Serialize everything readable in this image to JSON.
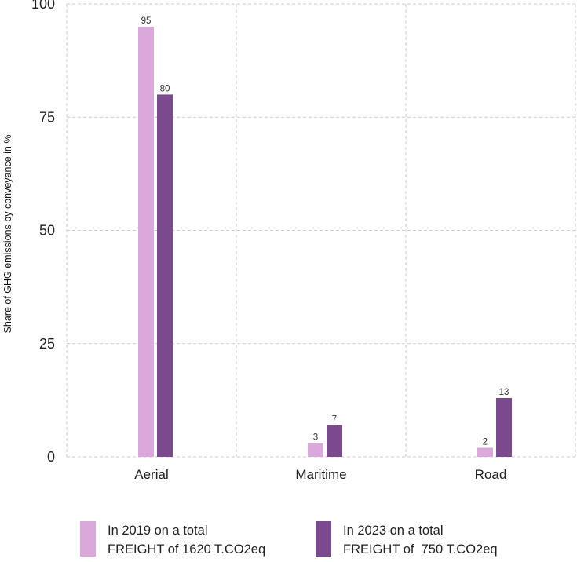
{
  "chart_data": {
    "type": "bar",
    "categories": [
      "Aerial",
      "Maritime",
      "Road"
    ],
    "series": [
      {
        "name": "In 2019 on a total\nFREIGHT of 1620 T.CO2eq",
        "values": [
          95,
          3,
          2
        ],
        "color": "#dba8dc"
      },
      {
        "name": "In 2023 on a total\nFREIGHT of  750 T.CO2eq",
        "values": [
          80,
          7,
          13
        ],
        "color": "#7b4a8e"
      }
    ],
    "data_labels": [
      [
        "95",
        "3",
        "2"
      ],
      [
        "80",
        "7",
        "13"
      ]
    ],
    "yticks": [
      "0",
      "25",
      "50",
      "75",
      "100"
    ],
    "ytick_values": [
      0,
      25,
      50,
      75,
      100
    ],
    "ylabel": "Share of GHG emissions by conveyance in %",
    "xlabel": "",
    "title": "",
    "ylim": [
      0,
      100
    ],
    "grid": true,
    "legend_position": "bottom"
  }
}
